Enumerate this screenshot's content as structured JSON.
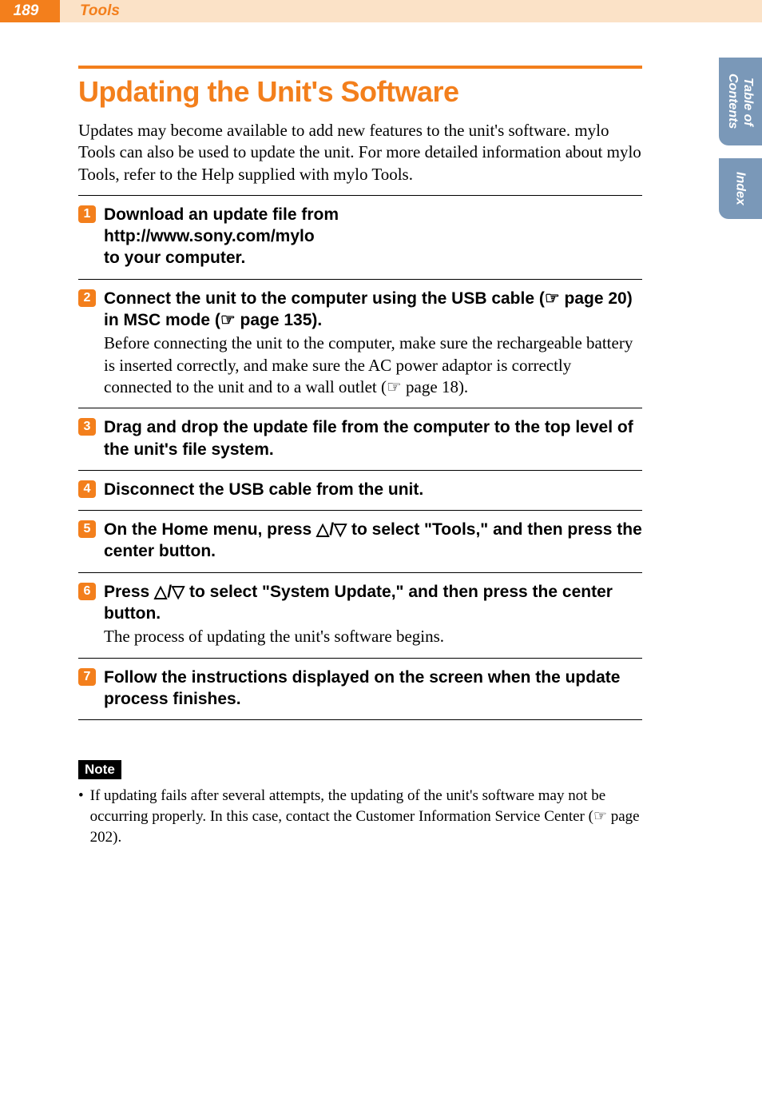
{
  "header": {
    "page_number": "189",
    "section": "Tools"
  },
  "side_tabs": {
    "toc": "Table of\nContents",
    "index": "Index"
  },
  "title": "Updating the Unit's Software",
  "intro": "Updates may become available to add new features to the unit's software. mylo Tools can also be used to update the unit. For more detailed information about mylo Tools, refer to the Help supplied with mylo Tools.",
  "steps": [
    {
      "num": "1",
      "title_parts": [
        "Download an update file from",
        "http://www.sony.com/mylo",
        "to your computer."
      ],
      "desc": ""
    },
    {
      "num": "2",
      "title_html": "Connect the unit to the computer using the USB cable (☞ page 20) in MSC mode (☞ page 135).",
      "desc": "Before connecting the unit to the computer, make sure the rechargeable battery is inserted correctly, and make sure the AC power adaptor is correctly connected to the unit and to a wall outlet (☞ page 18)."
    },
    {
      "num": "3",
      "title_html": "Drag and drop the update file from the computer to the top level of the unit's file system.",
      "desc": ""
    },
    {
      "num": "4",
      "title_html": "Disconnect the USB cable from the unit.",
      "desc": ""
    },
    {
      "num": "5",
      "title_html": "On the Home menu, press △/▽ to select \"Tools,\" and then press the center button.",
      "desc": ""
    },
    {
      "num": "6",
      "title_html": "Press △/▽ to select \"System Update,\" and then press the center button.",
      "desc": "The process of updating the unit's software begins."
    },
    {
      "num": "7",
      "title_html": "Follow the instructions displayed on the screen when the update process finishes.",
      "desc": ""
    }
  ],
  "note": {
    "label": "Note",
    "items": [
      "If updating fails after several attempts, the updating of the unit's software may not be occurring properly. In this case, contact the Customer Information Service Center (☞ page 202)."
    ]
  },
  "colors": {
    "accent": "#f37f1c",
    "header_bg": "#fbe2c7",
    "tab_bg": "#7a98b8",
    "text": "#000000",
    "white": "#ffffff"
  },
  "typography": {
    "title_fontsize": 36,
    "body_fontsize": 21,
    "step_title_fontsize": 21,
    "note_fontsize": 19
  }
}
